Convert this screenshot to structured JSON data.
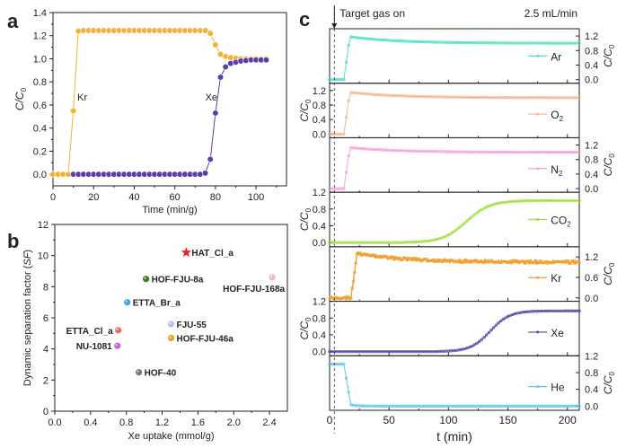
{
  "chart_data": [
    {
      "panel": "a",
      "type": "line",
      "xlabel": "Time (min/g)",
      "ylabel": "C/C0",
      "xlim": [
        0,
        115
      ],
      "ylim": [
        -0.1,
        1.4
      ],
      "xticks": [
        0,
        20,
        40,
        60,
        80,
        100
      ],
      "yticks": [
        0.0,
        0.2,
        0.4,
        0.6,
        0.8,
        1.0,
        1.2,
        1.4
      ],
      "series": [
        {
          "name": "Kr",
          "color": "#F5B133",
          "x": [
            0,
            2.5,
            5,
            7.5,
            10,
            12.5,
            15,
            17.5,
            20,
            22.5,
            25,
            27.5,
            30,
            32.5,
            35,
            37.5,
            40,
            42.5,
            45,
            47.5,
            50,
            52.5,
            55,
            57.5,
            60,
            62.5,
            65,
            67.5,
            70,
            72.5,
            75,
            77.5,
            80,
            82.5,
            85,
            87.5,
            90,
            92.5,
            95,
            97.5,
            100,
            102.5,
            105
          ],
          "y": [
            0,
            0,
            0,
            0,
            0.55,
            1.24,
            1.245,
            1.245,
            1.245,
            1.245,
            1.245,
            1.245,
            1.245,
            1.245,
            1.245,
            1.245,
            1.245,
            1.245,
            1.245,
            1.245,
            1.245,
            1.245,
            1.245,
            1.245,
            1.245,
            1.245,
            1.245,
            1.245,
            1.245,
            1.245,
            1.245,
            1.22,
            1.12,
            1.04,
            1.02,
            1.01,
            1.005,
            1.0,
            1.0,
            1.0,
            1.0,
            1.0,
            1.0
          ]
        },
        {
          "name": "Xe",
          "color": "#5B3FA8",
          "x": [
            10,
            12.5,
            15,
            17.5,
            20,
            22.5,
            25,
            27.5,
            30,
            32.5,
            35,
            37.5,
            40,
            42.5,
            45,
            47.5,
            50,
            52.5,
            55,
            57.5,
            60,
            62.5,
            65,
            67.5,
            70,
            72.5,
            75,
            77.5,
            80,
            82.5,
            85,
            87.5,
            90,
            92.5,
            95,
            97.5,
            100,
            102.5,
            105
          ],
          "y": [
            0,
            0,
            0,
            0,
            0,
            0,
            0,
            0,
            0,
            0,
            0,
            0,
            0,
            0,
            0,
            0,
            0,
            0,
            0,
            0,
            0,
            0,
            0,
            0,
            0,
            0,
            0.01,
            0.13,
            0.53,
            0.84,
            0.93,
            0.96,
            0.97,
            0.98,
            0.985,
            0.99,
            0.99,
            0.99,
            0.99
          ]
        }
      ],
      "annotations": [
        {
          "text": "Kr",
          "x": 12,
          "y": 0.64
        },
        {
          "text": "Xe",
          "x": 75,
          "y": 0.64
        }
      ]
    },
    {
      "panel": "b",
      "type": "scatter",
      "xlabel": "Xe uptake (mmol/g)",
      "ylabel": "Dynamic separation factor (SF)",
      "xlim": [
        0,
        2.6
      ],
      "ylim": [
        0,
        12
      ],
      "xticks": [
        0.0,
        0.4,
        0.8,
        1.2,
        1.6,
        2.0,
        2.4
      ],
      "yticks": [
        0,
        2,
        4,
        6,
        8,
        10,
        12
      ],
      "points": [
        {
          "label": "HAT_Cl_a",
          "x": 1.47,
          "y": 10.2,
          "color": "#E8202A",
          "marker": "star",
          "label_pos": "right"
        },
        {
          "label": "HOF-FJU-8a",
          "x": 1.02,
          "y": 8.5,
          "color": "#4A7A1E",
          "marker": "circle",
          "label_pos": "right"
        },
        {
          "label": "HOF-FJU-168a",
          "x": 2.43,
          "y": 8.6,
          "color": "#F6B8B8",
          "marker": "circle",
          "label_pos": "below-left"
        },
        {
          "label": "ETTA_Br_a",
          "x": 0.81,
          "y": 7.0,
          "color": "#3AA8E8",
          "marker": "circle",
          "label_pos": "right"
        },
        {
          "label": "FJU-55",
          "x": 1.3,
          "y": 5.6,
          "color": "#B9C0F2",
          "marker": "circle",
          "label_pos": "right"
        },
        {
          "label": "ETTA_Cl_a",
          "x": 0.71,
          "y": 5.2,
          "color": "#F06666",
          "marker": "circle",
          "label_pos": "left"
        },
        {
          "label": "HOF-FJU-46a",
          "x": 1.3,
          "y": 4.7,
          "color": "#E5A526",
          "marker": "circle",
          "label_pos": "right"
        },
        {
          "label": "NU-1081",
          "x": 0.7,
          "y": 4.2,
          "color": "#D35AE0",
          "marker": "circle",
          "label_pos": "left"
        },
        {
          "label": "HOF-40",
          "x": 0.94,
          "y": 2.5,
          "color": "#7A7A7A",
          "marker": "circle",
          "label_pos": "right"
        }
      ]
    },
    {
      "panel": "c",
      "type": "line",
      "title_left": "Target gas on",
      "title_right": "2.5 mL/min",
      "xlabel": "t (min)",
      "ylabel": "C/C0",
      "xlim": [
        0,
        210
      ],
      "xticks": [
        0,
        50,
        100,
        150,
        200
      ],
      "target_gas_on_t": 4,
      "subplots": [
        {
          "name": "Ar",
          "color": "#4FE0C0",
          "ylim": [
            -0.1,
            1.4
          ],
          "yticks": [
            0.0,
            0.4,
            0.8,
            1.2
          ],
          "yaxis": "right",
          "shape": "step",
          "t_rise": 14,
          "peak": 1.18,
          "plateau": 1.0,
          "noise": 0.0
        },
        {
          "name": "O2",
          "sub": "2",
          "base": "O",
          "color": "#F7B48A",
          "ylim": [
            -0.1,
            1.4
          ],
          "yticks": [
            0.0,
            0.4,
            0.8,
            1.2
          ],
          "yaxis": "left",
          "shape": "step",
          "t_rise": 14,
          "peak": 1.15,
          "plateau": 1.0,
          "noise": 0.0
        },
        {
          "name": "N2",
          "sub": "2",
          "base": "N",
          "color": "#F5A0D8",
          "ylim": [
            -0.1,
            1.4
          ],
          "yticks": [
            0.0,
            0.4,
            0.8,
            1.2
          ],
          "yaxis": "right",
          "shape": "step",
          "t_rise": 14,
          "peak": 1.13,
          "plateau": 1.0,
          "noise": 0.0
        },
        {
          "name": "CO2",
          "sub": "2",
          "base": "CO",
          "color": "#9BE03A",
          "ylim": [
            -0.1,
            1.2
          ],
          "yticks": [
            0.0,
            0.4,
            0.8,
            1.2
          ],
          "yaxis": "left",
          "shape": "sigmoid",
          "t_mid": 115,
          "width": 22,
          "plateau": 1.0,
          "noise": 0.0
        },
        {
          "name": "Kr",
          "color": "#F0A030",
          "ylim": [
            -0.1,
            1.5
          ],
          "yticks": [
            0.0,
            0.6,
            1.2
          ],
          "yaxis": "right",
          "shape": "step",
          "t_rise": 20,
          "peak": 1.3,
          "plateau": 1.05,
          "noise": 0.04
        },
        {
          "name": "Xe",
          "color": "#5B3FA8",
          "ylim": [
            -0.1,
            1.2
          ],
          "yticks": [
            0.0,
            0.4,
            0.8,
            1.2
          ],
          "yaxis": "left",
          "shape": "sigmoid",
          "t_mid": 135,
          "width": 18,
          "plateau": 0.97,
          "noise": 0.0
        },
        {
          "name": "He",
          "color": "#5AC8F0",
          "ylim": [
            -0.1,
            1.2
          ],
          "yticks": [
            0.0,
            0.4,
            0.8,
            1.2
          ],
          "yaxis": "right",
          "shape": "drop",
          "t_drop": 14,
          "start": 1.0,
          "end": 0.0,
          "noise": 0.0
        }
      ]
    }
  ],
  "panel_labels": [
    "a",
    "b",
    "c"
  ]
}
